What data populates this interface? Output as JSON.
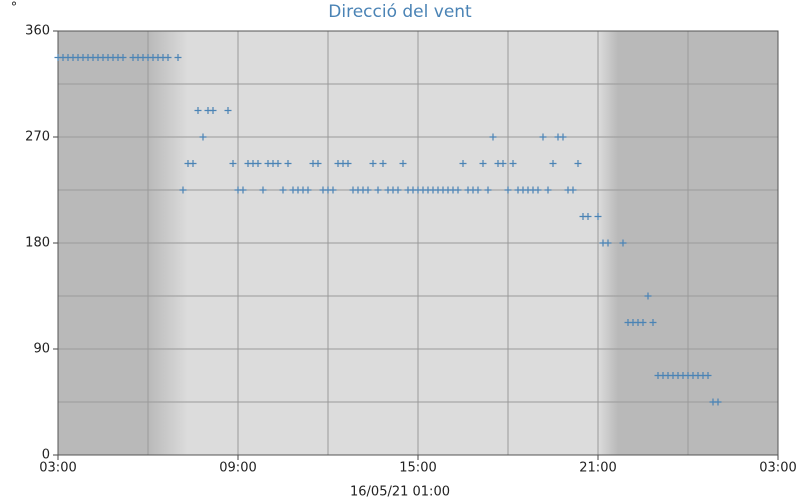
{
  "chart_data": {
    "type": "scatter",
    "title": "Direcció del vent",
    "y_label": "°",
    "x_label": "16/05/21 01:00",
    "color": "#4a83b5",
    "x": [
      0,
      10,
      20,
      30,
      40,
      50,
      60,
      70,
      80,
      90,
      100,
      110,
      120,
      130,
      150,
      160,
      170,
      180,
      190,
      200,
      210,
      220,
      240,
      250,
      260,
      270,
      280,
      290,
      300,
      310,
      340,
      350,
      360,
      370,
      380,
      390,
      400,
      410,
      420,
      430,
      440,
      450,
      460,
      470,
      480,
      490,
      500,
      510,
      520,
      530,
      540,
      550,
      560,
      570,
      580,
      590,
      600,
      610,
      620,
      630,
      640,
      650,
      660,
      670,
      680,
      690,
      700,
      710,
      720,
      730,
      740,
      750,
      760,
      770,
      780,
      790,
      800,
      810,
      820,
      830,
      840,
      850,
      860,
      870,
      880,
      890,
      900,
      910,
      920,
      930,
      940,
      950,
      960,
      970,
      980,
      990,
      1000,
      1010,
      1020,
      1030,
      1040,
      1050,
      1060,
      1080,
      1090,
      1100,
      1130,
      1140,
      1150,
      1160,
      1170,
      1180,
      1190,
      1200,
      1210,
      1220,
      1230,
      1240,
      1250,
      1260,
      1270,
      1280,
      1290,
      1300,
      1310,
      1320
    ],
    "values": [
      337.5,
      337.5,
      337.5,
      337.5,
      337.5,
      337.5,
      337.5,
      337.5,
      337.5,
      337.5,
      337.5,
      337.5,
      337.5,
      337.5,
      337.5,
      337.5,
      337.5,
      337.5,
      337.5,
      337.5,
      337.5,
      337.5,
      337.5,
      225,
      247.5,
      247.5,
      292.5,
      270,
      292.5,
      292.5,
      292.5,
      247.5,
      225,
      225,
      247.5,
      247.5,
      247.5,
      225,
      247.5,
      247.5,
      247.5,
      225,
      247.5,
      225,
      225,
      225,
      225,
      247.5,
      247.5,
      225,
      225,
      225,
      247.5,
      247.5,
      247.5,
      225,
      225,
      225,
      225,
      247.5,
      225,
      247.5,
      225,
      225,
      225,
      247.5,
      225,
      225,
      225,
      225,
      225,
      225,
      225,
      225,
      225,
      225,
      225,
      247.5,
      225,
      225,
      225,
      247.5,
      225,
      270,
      247.5,
      247.5,
      225,
      247.5,
      225,
      225,
      225,
      225,
      225,
      270,
      225,
      247.5,
      270,
      270,
      225,
      225,
      247.5,
      202.5,
      202.5,
      202.5,
      180,
      180,
      180,
      112.5,
      112.5,
      112.5,
      112.5,
      135,
      112.5,
      67.5,
      67.5,
      67.5,
      67.5,
      67.5,
      67.5,
      67.5,
      67.5,
      67.5,
      67.5,
      67.5,
      45,
      45
    ],
    "xlim": [
      0,
      1440
    ],
    "xticks": [
      {
        "value": 0,
        "label": "03:00"
      },
      {
        "value": 360,
        "label": "09:00"
      },
      {
        "value": 720,
        "label": "15:00"
      },
      {
        "value": 1080,
        "label": "21:00"
      },
      {
        "value": 1440,
        "label": "03:00"
      }
    ],
    "xticks_minor": [
      180,
      540,
      900,
      1260
    ],
    "ylim": [
      0,
      360
    ],
    "yticks": [
      0,
      90,
      180,
      270,
      360
    ],
    "yticks_minor": [
      45,
      135,
      225,
      315
    ],
    "grid": true,
    "night_shading": [
      [
        0,
        180
      ],
      [
        1080,
        1440
      ]
    ]
  }
}
